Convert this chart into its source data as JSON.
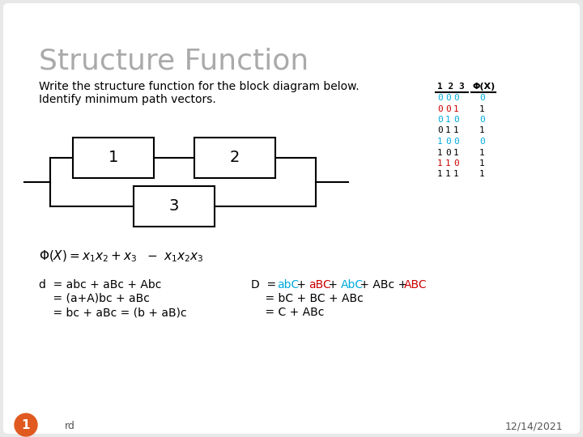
{
  "title": "Structure Function",
  "subtitle1": "Write the structure function for the block diagram below.",
  "subtitle2": "Identify minimum path vectors.",
  "bg_color": "#e8e8e8",
  "slide_bg": "#ffffff",
  "title_color": "#aaaaaa",
  "table_rows": [
    {
      "v1": "0",
      "v2": "0",
      "v3": "0",
      "phi": "0",
      "c1": "#00aadd",
      "c2": "#00aadd",
      "c3": "#00aadd",
      "cphi": "#00aadd"
    },
    {
      "v1": "0",
      "v2": "0",
      "v3": "1",
      "phi": "1",
      "c1": "#cc0000",
      "c2": "#cc0000",
      "c3": "#cc0000",
      "cphi": "#000000"
    },
    {
      "v1": "0",
      "v2": "1",
      "v3": "0",
      "phi": "0",
      "c1": "#00aadd",
      "c2": "#00aadd",
      "c3": "#00aadd",
      "cphi": "#00aadd"
    },
    {
      "v1": "0",
      "v2": "1",
      "v3": "1",
      "phi": "1",
      "c1": "#000000",
      "c2": "#000000",
      "c3": "#000000",
      "cphi": "#000000"
    },
    {
      "v1": "1",
      "v2": "0",
      "v3": "0",
      "phi": "0",
      "c1": "#00aadd",
      "c2": "#00aadd",
      "c3": "#00aadd",
      "cphi": "#00aadd"
    },
    {
      "v1": "1",
      "v2": "0",
      "v3": "1",
      "phi": "1",
      "c1": "#000000",
      "c2": "#000000",
      "c3": "#000000",
      "cphi": "#000000"
    },
    {
      "v1": "1",
      "v2": "1",
      "v3": "0",
      "phi": "1",
      "c1": "#cc0000",
      "c2": "#cc0000",
      "c3": "#cc0000",
      "cphi": "#000000"
    },
    {
      "v1": "1",
      "v2": "1",
      "v3": "1",
      "phi": "1",
      "c1": "#000000",
      "c2": "#000000",
      "c3": "#000000",
      "cphi": "#000000"
    }
  ],
  "footer_left": "rd",
  "footer_right": "12/14/2021",
  "page_num": "1",
  "orange_color": "#e05a20"
}
